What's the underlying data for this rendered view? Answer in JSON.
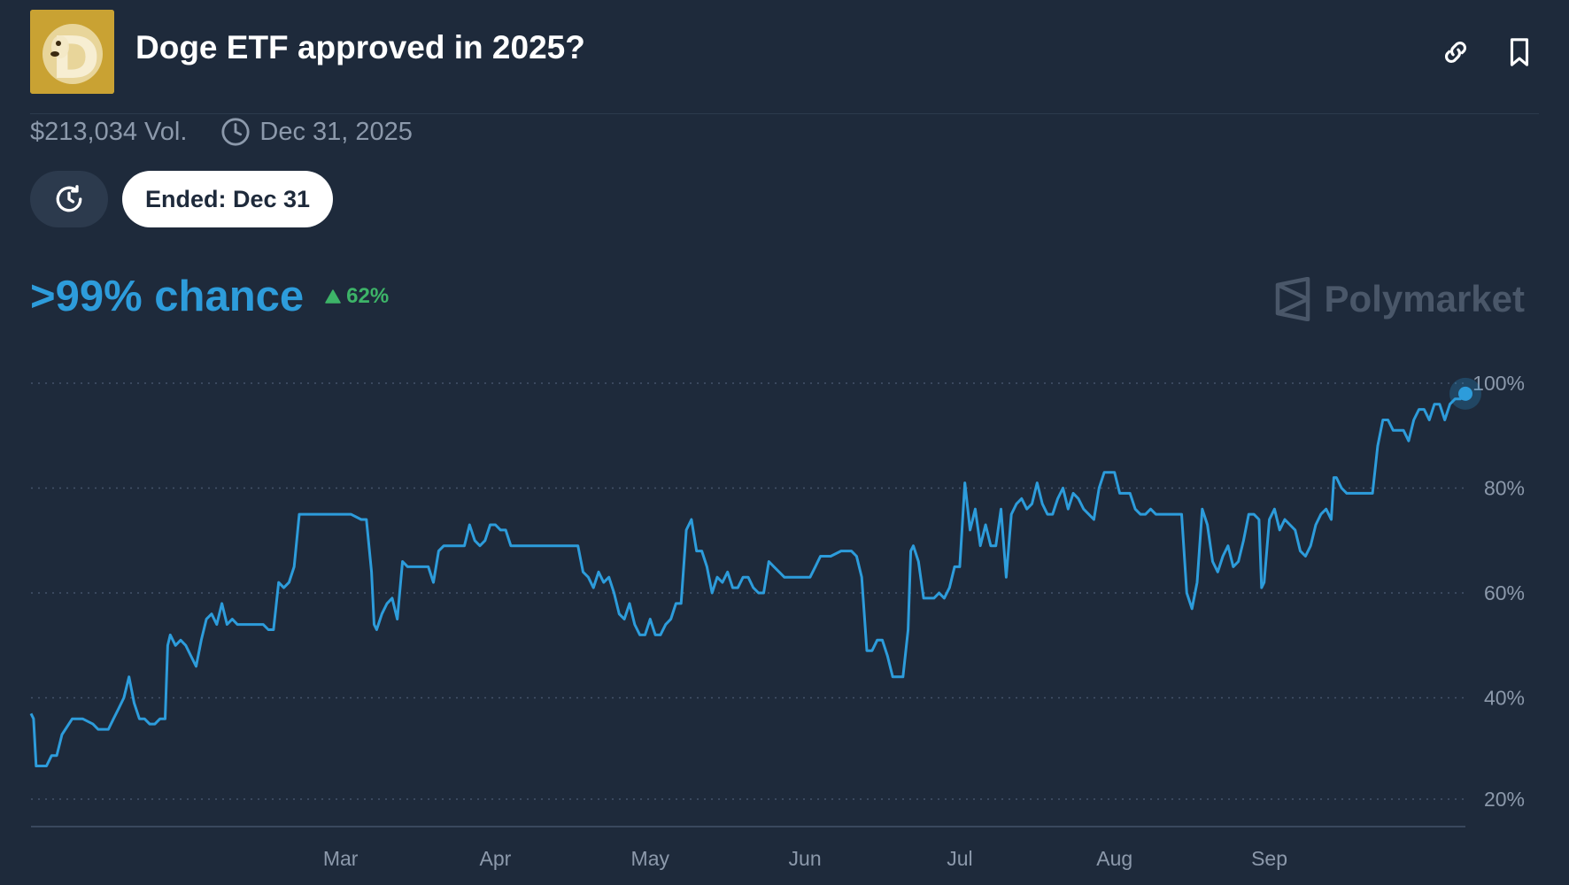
{
  "header": {
    "title": "Doge ETF approved in 2025?",
    "logo_icon": "doge-coin-icon",
    "actions": [
      {
        "name": "copy-link",
        "icon": "link-icon"
      },
      {
        "name": "bookmark",
        "icon": "bookmark-icon"
      }
    ]
  },
  "meta": {
    "volume": "$213,034 Vol.",
    "end_date": "Dec 31, 2025",
    "clock_icon": "clock-icon"
  },
  "controls": {
    "history_icon": "history-icon",
    "ended_label": "Ended: Dec 31"
  },
  "probability": {
    "chance_label": ">99% chance",
    "change_label": "62%",
    "change_direction": "up",
    "change_color": "#3db468"
  },
  "watermark": {
    "brand": "Polymarket",
    "icon": "polymarket-logo-icon"
  },
  "colors": {
    "background": "#1e2a3b",
    "accent": "#2d9cdb",
    "muted_text": "#8c99ab",
    "positive": "#3db468"
  },
  "chart_data": {
    "type": "line",
    "title": "",
    "xlabel": "",
    "ylabel": "",
    "x_ticks": [
      "Mar",
      "Apr",
      "May",
      "Jun",
      "Jul",
      "Aug",
      "Sep"
    ],
    "y_ticks": [
      "100%",
      "80%",
      "60%",
      "40%",
      "20%"
    ],
    "y_tick_values": [
      100,
      80,
      60,
      40,
      20
    ],
    "ylim": [
      20,
      100
    ],
    "xlim_days": [
      0,
      250
    ],
    "x_tick_days": [
      60,
      90,
      120,
      150,
      180,
      210,
      240
    ],
    "grid": true,
    "grid_style": "dotted horizontal",
    "series": [
      {
        "color": "#2d9cdb",
        "points": [
          [
            0,
            37
          ],
          [
            0.5,
            36
          ],
          [
            1,
            27
          ],
          [
            2,
            27
          ],
          [
            3,
            27
          ],
          [
            4,
            29
          ],
          [
            5,
            29
          ],
          [
            6,
            33
          ],
          [
            8,
            36
          ],
          [
            10,
            36
          ],
          [
            12,
            35
          ],
          [
            13,
            34
          ],
          [
            15,
            34
          ],
          [
            16,
            36
          ],
          [
            17,
            38
          ],
          [
            18,
            40
          ],
          [
            19,
            44
          ],
          [
            20,
            39
          ],
          [
            21,
            36
          ],
          [
            22,
            36
          ],
          [
            23,
            35
          ],
          [
            24,
            35
          ],
          [
            25,
            36
          ],
          [
            26,
            36
          ],
          [
            26.5,
            50
          ],
          [
            27,
            52
          ],
          [
            28,
            50
          ],
          [
            29,
            51
          ],
          [
            30,
            50
          ],
          [
            31,
            48
          ],
          [
            32,
            46
          ],
          [
            33,
            51
          ],
          [
            34,
            55
          ],
          [
            35,
            56
          ],
          [
            36,
            54
          ],
          [
            37,
            58
          ],
          [
            38,
            54
          ],
          [
            39,
            55
          ],
          [
            40,
            54
          ],
          [
            42,
            54
          ],
          [
            45,
            54
          ],
          [
            46,
            53
          ],
          [
            47,
            53
          ],
          [
            48,
            62
          ],
          [
            49,
            61
          ],
          [
            50,
            62
          ],
          [
            51,
            65
          ],
          [
            52,
            75
          ],
          [
            54,
            75
          ],
          [
            56,
            75
          ],
          [
            58,
            75
          ],
          [
            60,
            75
          ],
          [
            62,
            75
          ],
          [
            64,
            74
          ],
          [
            65,
            74
          ],
          [
            66,
            64
          ],
          [
            66.5,
            54
          ],
          [
            67,
            53
          ],
          [
            68,
            56
          ],
          [
            69,
            58
          ],
          [
            70,
            59
          ],
          [
            71,
            55
          ],
          [
            72,
            66
          ],
          [
            73,
            65
          ],
          [
            75,
            65
          ],
          [
            77,
            65
          ],
          [
            78,
            62
          ],
          [
            79,
            68
          ],
          [
            80,
            69
          ],
          [
            82,
            69
          ],
          [
            84,
            69
          ],
          [
            85,
            73
          ],
          [
            86,
            70
          ],
          [
            87,
            69
          ],
          [
            88,
            70
          ],
          [
            89,
            73
          ],
          [
            90,
            73
          ],
          [
            91,
            72
          ],
          [
            92,
            72
          ],
          [
            93,
            69
          ],
          [
            95,
            69
          ],
          [
            97,
            69
          ],
          [
            100,
            69
          ],
          [
            103,
            69
          ],
          [
            106,
            69
          ],
          [
            107,
            64
          ],
          [
            108,
            63
          ],
          [
            109,
            61
          ],
          [
            110,
            64
          ],
          [
            111,
            62
          ],
          [
            112,
            63
          ],
          [
            113,
            60
          ],
          [
            114,
            56
          ],
          [
            115,
            55
          ],
          [
            116,
            58
          ],
          [
            117,
            54
          ],
          [
            118,
            52
          ],
          [
            119,
            52
          ],
          [
            120,
            55
          ],
          [
            121,
            52
          ],
          [
            122,
            52
          ],
          [
            123,
            54
          ],
          [
            124,
            55
          ],
          [
            125,
            58
          ],
          [
            126,
            58
          ],
          [
            127,
            72
          ],
          [
            128,
            74
          ],
          [
            129,
            68
          ],
          [
            130,
            68
          ],
          [
            131,
            65
          ],
          [
            132,
            60
          ],
          [
            133,
            63
          ],
          [
            134,
            62
          ],
          [
            135,
            64
          ],
          [
            136,
            61
          ],
          [
            137,
            61
          ],
          [
            138,
            63
          ],
          [
            139,
            63
          ],
          [
            140,
            61
          ],
          [
            141,
            60
          ],
          [
            142,
            60
          ],
          [
            143,
            66
          ],
          [
            144,
            65
          ],
          [
            145,
            64
          ],
          [
            146,
            63
          ],
          [
            148,
            63
          ],
          [
            150,
            63
          ],
          [
            151,
            63
          ],
          [
            152,
            65
          ],
          [
            153,
            67
          ],
          [
            155,
            67
          ],
          [
            157,
            68
          ],
          [
            159,
            68
          ],
          [
            160,
            67
          ],
          [
            161,
            63
          ],
          [
            162,
            49
          ],
          [
            163,
            49
          ],
          [
            164,
            51
          ],
          [
            165,
            51
          ],
          [
            166,
            48
          ],
          [
            167,
            44
          ],
          [
            169,
            44
          ],
          [
            170,
            53
          ],
          [
            170.5,
            68
          ],
          [
            171,
            69
          ],
          [
            172,
            66
          ],
          [
            173,
            59
          ],
          [
            174,
            59
          ],
          [
            175,
            59
          ],
          [
            176,
            60
          ],
          [
            177,
            59
          ],
          [
            178,
            61
          ],
          [
            179,
            65
          ],
          [
            180,
            65
          ],
          [
            181,
            81
          ],
          [
            182,
            72
          ],
          [
            183,
            76
          ],
          [
            184,
            69
          ],
          [
            185,
            73
          ],
          [
            186,
            69
          ],
          [
            187,
            69
          ],
          [
            188,
            76
          ],
          [
            189,
            63
          ],
          [
            190,
            75
          ],
          [
            191,
            77
          ],
          [
            192,
            78
          ],
          [
            193,
            76
          ],
          [
            194,
            77
          ],
          [
            195,
            81
          ],
          [
            196,
            77
          ],
          [
            197,
            75
          ],
          [
            198,
            75
          ],
          [
            199,
            78
          ],
          [
            200,
            80
          ],
          [
            201,
            76
          ],
          [
            202,
            79
          ],
          [
            203,
            78
          ],
          [
            204,
            76
          ],
          [
            205,
            75
          ],
          [
            206,
            74
          ],
          [
            207,
            80
          ],
          [
            208,
            83
          ],
          [
            210,
            83
          ],
          [
            211,
            79
          ],
          [
            213,
            79
          ],
          [
            214,
            76
          ],
          [
            215,
            75
          ],
          [
            216,
            75
          ],
          [
            217,
            76
          ],
          [
            218,
            75
          ],
          [
            220,
            75
          ],
          [
            222,
            75
          ],
          [
            223,
            75
          ],
          [
            224,
            60
          ],
          [
            225,
            57
          ],
          [
            226,
            62
          ],
          [
            227,
            76
          ],
          [
            228,
            73
          ],
          [
            229,
            66
          ],
          [
            230,
            64
          ],
          [
            231,
            67
          ],
          [
            232,
            69
          ],
          [
            233,
            65
          ],
          [
            234,
            66
          ],
          [
            235,
            70
          ],
          [
            236,
            75
          ],
          [
            237,
            75
          ],
          [
            238,
            74
          ],
          [
            238.5,
            61
          ],
          [
            239,
            62
          ],
          [
            240,
            74
          ],
          [
            241,
            76
          ],
          [
            242,
            72
          ],
          [
            243,
            74
          ],
          [
            244,
            73
          ],
          [
            245,
            72
          ],
          [
            246,
            68
          ],
          [
            247,
            67
          ],
          [
            248,
            69
          ],
          [
            249,
            73
          ],
          [
            250,
            75
          ],
          [
            251,
            76
          ],
          [
            252,
            74
          ],
          [
            252.5,
            82
          ],
          [
            253,
            82
          ],
          [
            254,
            80
          ],
          [
            255,
            79
          ],
          [
            258,
            79
          ],
          [
            260,
            79
          ],
          [
            261,
            88
          ],
          [
            262,
            93
          ],
          [
            263,
            93
          ],
          [
            264,
            91
          ],
          [
            266,
            91
          ],
          [
            267,
            89
          ],
          [
            268,
            93
          ],
          [
            269,
            95
          ],
          [
            270,
            95
          ],
          [
            271,
            93
          ],
          [
            272,
            96
          ],
          [
            273,
            96
          ],
          [
            274,
            93
          ],
          [
            275,
            96
          ],
          [
            276,
            97
          ],
          [
            277,
            97
          ],
          [
            278,
            98
          ]
        ]
      }
    ],
    "end_marker": {
      "x": 278,
      "y": 98
    }
  }
}
